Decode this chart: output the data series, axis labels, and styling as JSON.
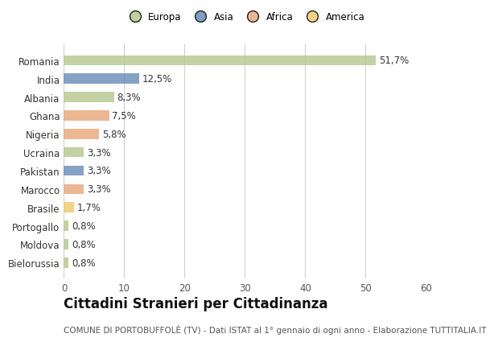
{
  "countries": [
    "Romania",
    "India",
    "Albania",
    "Ghana",
    "Nigeria",
    "Ucraina",
    "Pakistan",
    "Marocco",
    "Brasile",
    "Portogallo",
    "Moldova",
    "Bielorussia"
  ],
  "values": [
    51.7,
    12.5,
    8.3,
    7.5,
    5.8,
    3.3,
    3.3,
    3.3,
    1.7,
    0.8,
    0.8,
    0.8
  ],
  "labels": [
    "51,7%",
    "12,5%",
    "8,3%",
    "7,5%",
    "5,8%",
    "3,3%",
    "3,3%",
    "3,3%",
    "1,7%",
    "0,8%",
    "0,8%",
    "0,8%"
  ],
  "colors": [
    "#b5c98e",
    "#6b8cba",
    "#b5c98e",
    "#e8a87c",
    "#e8a87c",
    "#b5c98e",
    "#6b8cba",
    "#e8a87c",
    "#f0c96e",
    "#b5c98e",
    "#b5c98e",
    "#b5c98e"
  ],
  "legend_labels": [
    "Europa",
    "Asia",
    "Africa",
    "America"
  ],
  "legend_colors": [
    "#b5c98e",
    "#6b8cba",
    "#e8a87c",
    "#f0c96e"
  ],
  "xlim": [
    0,
    60
  ],
  "xticks": [
    0,
    10,
    20,
    30,
    40,
    50,
    60
  ],
  "title": "Cittadini Stranieri per Cittadinanza",
  "subtitle": "COMUNE DI PORTOBUFFOLÈ (TV) - Dati ISTAT al 1° gennaio di ogni anno - Elaborazione TUTTITALIA.IT",
  "background_color": "#ffffff",
  "grid_color": "#d0d0d0",
  "bar_height": 0.55,
  "label_fontsize": 8.5,
  "title_fontsize": 12,
  "subtitle_fontsize": 7.5
}
